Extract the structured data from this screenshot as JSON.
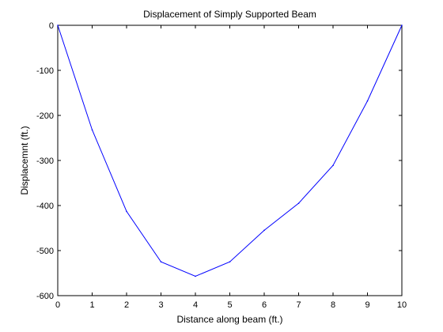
{
  "chart_data": {
    "type": "line",
    "title": "Displacement of Simply Supported Beam",
    "xlabel": "Distance along beam (ft.)",
    "ylabel": "Displacemnt (ft.)",
    "xlim": [
      0,
      10
    ],
    "ylim": [
      -600,
      0
    ],
    "xticks": [
      0,
      1,
      2,
      3,
      4,
      5,
      6,
      7,
      8,
      9,
      10
    ],
    "yticks": [
      0,
      -100,
      -200,
      -300,
      -400,
      -500,
      -600
    ],
    "grid": false,
    "series": [
      {
        "color": "#0000ff",
        "x": [
          0,
          1,
          2,
          3,
          4,
          5,
          6,
          7,
          8,
          9,
          10
        ],
        "y": [
          0,
          -232,
          -413,
          -525,
          -557,
          -525,
          -455,
          -395,
          -311,
          -168,
          0
        ]
      }
    ]
  }
}
